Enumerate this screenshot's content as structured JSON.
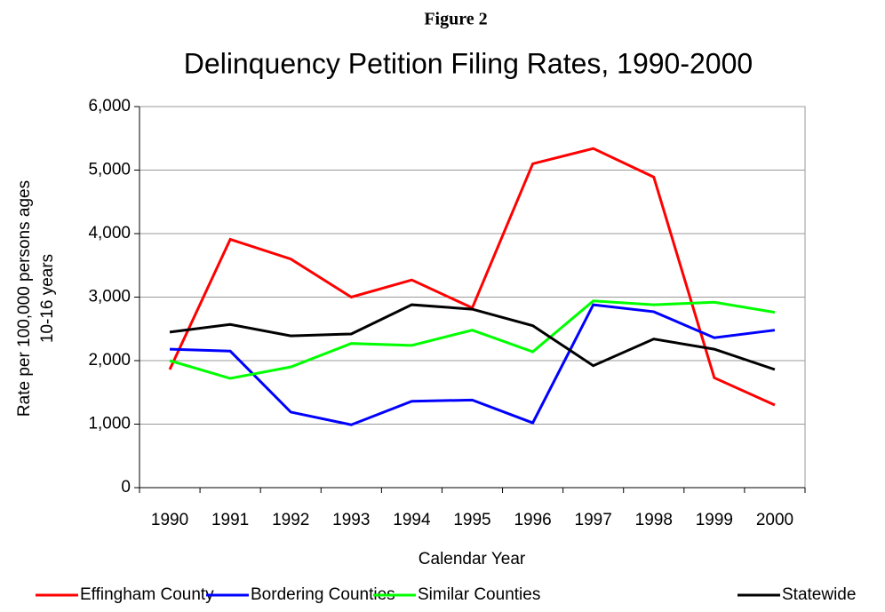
{
  "chart_data": {
    "type": "line",
    "figure_label": "Figure 2",
    "title": "Delinquency Petition Filing Rates, 1990-2000",
    "xlabel": "Calendar Year",
    "ylabel": [
      "Rate per 100,000 persons ages",
      "10-16 years"
    ],
    "categories": [
      "1990",
      "1991",
      "1992",
      "1993",
      "1994",
      "1995",
      "1996",
      "1997",
      "1998",
      "1999",
      "2000"
    ],
    "series": [
      {
        "name": "Effingham County",
        "color": "#ff0000",
        "values": [
          1860,
          3910,
          3600,
          3000,
          3270,
          2830,
          5100,
          5340,
          4890,
          1730,
          1300
        ]
      },
      {
        "name": "Bordering Counties",
        "color": "#0000ff",
        "values": [
          2180,
          2150,
          1190,
          990,
          1360,
          1380,
          1020,
          2880,
          2770,
          2360,
          2480
        ]
      },
      {
        "name": "Similar Counties",
        "color": "#00ff00",
        "values": [
          2000,
          1720,
          1900,
          2270,
          2240,
          2480,
          2140,
          2940,
          2880,
          2920,
          2760
        ]
      },
      {
        "name": "Statewide",
        "color": "#000000",
        "values": [
          2450,
          2570,
          2390,
          2420,
          2880,
          2810,
          2550,
          1920,
          2340,
          2180,
          1860
        ]
      }
    ],
    "ylim": [
      0,
      6000
    ],
    "yticks": [
      0,
      {
        "value": 1000,
        "label": "1,000"
      },
      {
        "value": 2000,
        "label": "2,000"
      },
      {
        "value": 3000,
        "label": "3,000"
      },
      {
        "value": 4000,
        "label": "4,000"
      },
      {
        "value": 5000,
        "label": "5,000"
      },
      {
        "value": 6000,
        "label": "6,000"
      }
    ],
    "grid": true,
    "legend": "bottom"
  }
}
